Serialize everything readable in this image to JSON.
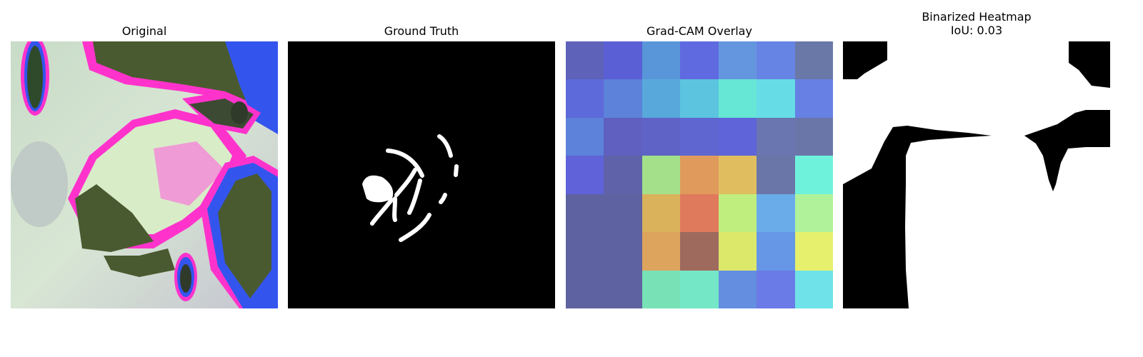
{
  "panels": {
    "original": {
      "title": "Original"
    },
    "ground_truth": {
      "title": "Ground Truth"
    },
    "gradcam": {
      "title": "Grad-CAM Overlay",
      "cells": [
        [
          "#5e62b8",
          "#5a5fd6",
          "#5896d9",
          "#5f6ae0",
          "#6496e0",
          "#6684e4",
          "#6a78a8"
        ],
        [
          "#5d6ad9",
          "#5c82d9",
          "#58a8dc",
          "#5cc4de",
          "#66e6d4",
          "#66dce6",
          "#6680e4"
        ],
        [
          "#5c82d9",
          "#5f60c0",
          "#5f63c5",
          "#5f66d0",
          "#5f64d8",
          "#6a76b0",
          "#6a76a8"
        ],
        [
          "#5f62d8",
          "#5f62a8",
          "#a4e08a",
          "#e09a5c",
          "#e0be60",
          "#6a76a8",
          "#6ef2dc"
        ],
        [
          "#5e62a0",
          "#5e62a0",
          "#dab25c",
          "#e07a5c",
          "#c0ee7e",
          "#6aacea",
          "#b0f29a"
        ],
        [
          "#5e62a0",
          "#5e62a0",
          "#dca45c",
          "#9e6a5e",
          "#dce86a",
          "#6696e6",
          "#e6f06c"
        ],
        [
          "#5e62a0",
          "#5e62a0",
          "#78e2b6",
          "#74e8c6",
          "#648ee0",
          "#6a7ae6",
          "#6ee2e8"
        ]
      ]
    },
    "binarized": {
      "title_line1": "Binarized Heatmap",
      "title_line2": "IoU: 0.03"
    }
  }
}
